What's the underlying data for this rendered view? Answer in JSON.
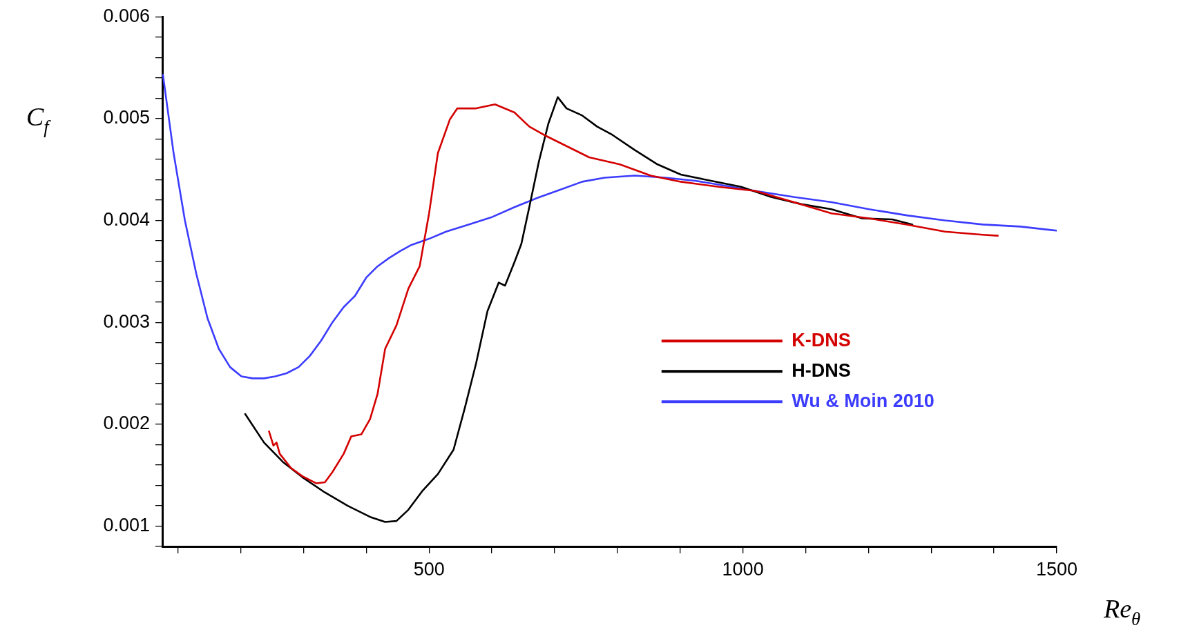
{
  "chart_data": {
    "type": "line",
    "xlabel": "Re$_{θ}$",
    "ylabel": "C$_{f}$",
    "xlim": [
      75,
      1500
    ],
    "ylim": [
      0.0008,
      0.006
    ],
    "xticks": [
      {
        "value": 100,
        "label": null
      },
      {
        "value": 200,
        "label": null
      },
      {
        "value": 300,
        "label": null
      },
      {
        "value": 400,
        "label": null
      },
      500,
      {
        "value": 600,
        "label": null
      },
      {
        "value": 700,
        "label": null
      },
      {
        "value": 800,
        "label": null
      },
      {
        "value": 900,
        "label": null
      },
      1000,
      {
        "value": 1100,
        "label": null
      },
      {
        "value": 1200,
        "label": null
      },
      {
        "value": 1300,
        "label": null
      },
      {
        "value": 1400,
        "label": null
      },
      1500
    ],
    "yticks": [
      {
        "value": 0.0008,
        "label": null
      },
      0.001,
      {
        "value": 0.0012,
        "label": null
      },
      {
        "value": 0.0014,
        "label": null
      },
      {
        "value": 0.0016,
        "label": null
      },
      {
        "value": 0.0018,
        "label": null
      },
      0.002,
      {
        "value": 0.0022,
        "label": null
      },
      {
        "value": 0.0024,
        "label": null
      },
      {
        "value": 0.0026,
        "label": null
      },
      {
        "value": 0.0028,
        "label": null
      },
      0.003,
      {
        "value": 0.0032,
        "label": null
      },
      {
        "value": 0.0034,
        "label": null
      },
      {
        "value": 0.0036,
        "label": null
      },
      {
        "value": 0.0038,
        "label": null
      },
      0.004,
      {
        "value": 0.0042,
        "label": null
      },
      {
        "value": 0.0044,
        "label": null
      },
      {
        "value": 0.0046,
        "label": null
      },
      {
        "value": 0.0048,
        "label": null
      },
      0.005,
      {
        "value": 0.0052,
        "label": null
      },
      {
        "value": 0.0054,
        "label": null
      },
      {
        "value": 0.0056,
        "label": null
      },
      {
        "value": 0.0058,
        "label": null
      },
      0.006
    ],
    "legend": "bottom right",
    "marker": "none",
    "line_style": "solid",
    "series": [
      {
        "name": "K-DNS",
        "color": "#d40000",
        "x": [
          245,
          252,
          257,
          262,
          280,
          298,
          320,
          334,
          346,
          364,
          376,
          392,
          406,
          418,
          430,
          448,
          467,
          485,
          500,
          514,
          533,
          545,
          575,
          605,
          636,
          660,
          683,
          719,
          755,
          804,
          853,
          901,
          961,
          1020,
          1081,
          1141,
          1201,
          1261,
          1322,
          1382,
          1406
        ],
        "values": [
          0.00193,
          0.00179,
          0.00182,
          0.00171,
          0.00157,
          0.00149,
          0.00142,
          0.00143,
          0.00153,
          0.00171,
          0.00188,
          0.0019,
          0.00205,
          0.0023,
          0.00274,
          0.00297,
          0.00333,
          0.00355,
          0.00407,
          0.00466,
          0.00499,
          0.0051,
          0.0051,
          0.00514,
          0.00506,
          0.00492,
          0.00484,
          0.00473,
          0.00462,
          0.00455,
          0.00444,
          0.00438,
          0.00433,
          0.00429,
          0.00418,
          0.00407,
          0.00402,
          0.00396,
          0.00389,
          0.00386,
          0.00385
        ]
      },
      {
        "name": "H-DNS",
        "color": "#000000",
        "x": [
          207,
          237,
          267,
          298,
          334,
          370,
          406,
          430,
          448,
          467,
          490,
          514,
          539,
          557,
          575,
          593,
          611,
          621,
          636,
          647,
          660,
          675,
          690,
          705,
          719,
          744,
          768,
          792,
          828,
          864,
          901,
          949,
          997,
          1045,
          1093,
          1141,
          1190,
          1238,
          1270
        ],
        "values": [
          0.0021,
          0.00182,
          0.00163,
          0.00148,
          0.00133,
          0.0012,
          0.00109,
          0.00104,
          0.00105,
          0.00116,
          0.00135,
          0.00151,
          0.00175,
          0.00216,
          0.0026,
          0.00311,
          0.00339,
          0.00336,
          0.00359,
          0.00377,
          0.00414,
          0.00458,
          0.00495,
          0.00521,
          0.0051,
          0.00503,
          0.00492,
          0.00484,
          0.00469,
          0.00455,
          0.00445,
          0.00439,
          0.00433,
          0.00423,
          0.00416,
          0.00411,
          0.00402,
          0.00401,
          0.00396
        ]
      },
      {
        "name": "Wu & Moin 2010",
        "color": "#3c3cff",
        "x": [
          76,
          93,
          111,
          129,
          147,
          165,
          183,
          201,
          219,
          237,
          255,
          273,
          292,
          310,
          328,
          346,
          364,
          382,
          400,
          418,
          436,
          454,
          472,
          500,
          527,
          563,
          599,
          636,
          672,
          708,
          744,
          780,
          828,
          876,
          924,
          972,
          1020,
          1081,
          1141,
          1201,
          1261,
          1322,
          1382,
          1442,
          1500
        ],
        "values": [
          0.00543,
          0.00466,
          0.004,
          0.00348,
          0.00304,
          0.00274,
          0.00256,
          0.00247,
          0.00245,
          0.00245,
          0.00247,
          0.0025,
          0.00256,
          0.00267,
          0.00282,
          0.003,
          0.00315,
          0.00326,
          0.00344,
          0.00355,
          0.00363,
          0.0037,
          0.00376,
          0.00382,
          0.00389,
          0.00396,
          0.00403,
          0.00413,
          0.00422,
          0.0043,
          0.00438,
          0.00442,
          0.00444,
          0.00442,
          0.00439,
          0.00434,
          0.00429,
          0.00423,
          0.00418,
          0.00411,
          0.00405,
          0.004,
          0.00396,
          0.00394,
          0.0039
        ]
      }
    ]
  }
}
